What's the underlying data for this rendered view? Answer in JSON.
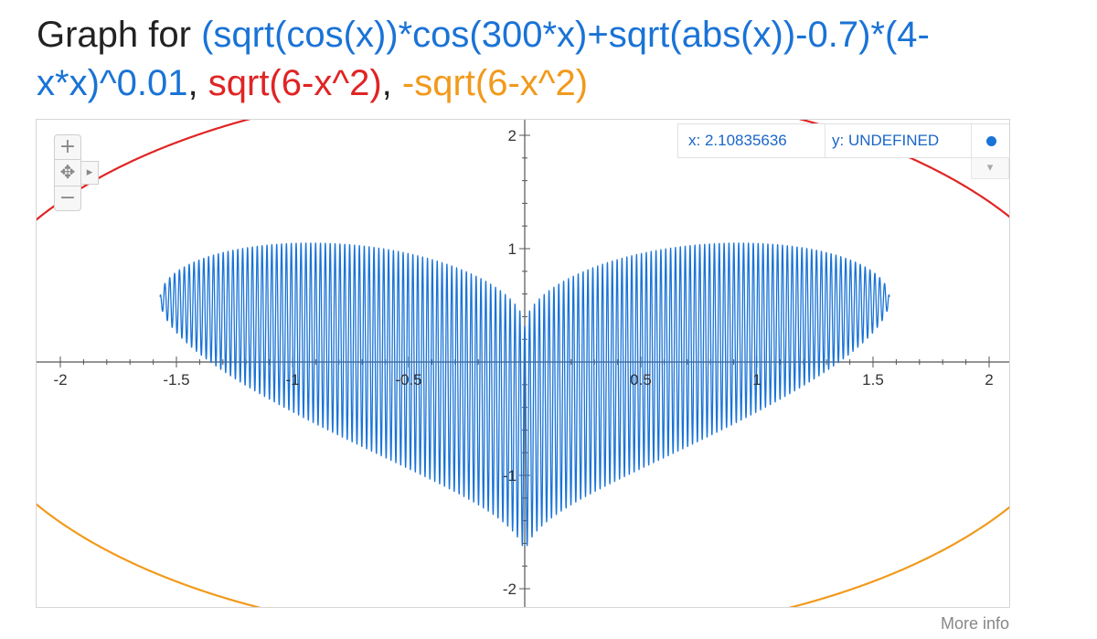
{
  "title": {
    "prefix": "Graph for ",
    "functions": [
      "(sqrt(cos(x))*cos(300*x)+sqrt(abs(x))-0.7)*(4-x*x)^0.01",
      "sqrt(6-x^2)",
      "-sqrt(6-x^2)"
    ],
    "separator": ", "
  },
  "readout": {
    "x_text": "x: 2.10835636",
    "y_text": "y: UNDEFINED"
  },
  "controls": {
    "zoom_in": "+",
    "zoom_out": "−",
    "pan": "✥",
    "expand": "▸",
    "dropdown": "▾"
  },
  "more_info": "More info",
  "chart_data": {
    "type": "line",
    "title": "",
    "xlabel": "",
    "ylabel": "",
    "xlim": [
      -2.1,
      2.1
    ],
    "ylim": [
      -2.1,
      2.1
    ],
    "x_ticks": [
      -2,
      -1.5,
      -1,
      -0.5,
      0.5,
      1,
      1.5,
      2
    ],
    "y_ticks": [
      2,
      1,
      -1,
      -2
    ],
    "grid": false,
    "series": [
      {
        "name": "(sqrt(cos(x))*cos(300*x)+sqrt(abs(x))-0.7)*(4-x*x)^0.01",
        "color": "#1a73d6",
        "expression": "(sqrt(cos(x))*cos(300*x)+sqrt(abs(x))-0.7)*(4-x*x)^0.01",
        "domain": [
          -1.5708,
          1.5708
        ]
      },
      {
        "name": "sqrt(6-x^2)",
        "color": "#e02424",
        "expression": "sqrt(6-x^2)",
        "domain": [
          -2.4495,
          2.4495
        ]
      },
      {
        "name": "-sqrt(6-x^2)",
        "color": "#f19a1c",
        "expression": "-sqrt(6-x^2)",
        "domain": [
          -2.4495,
          2.4495
        ]
      }
    ]
  }
}
